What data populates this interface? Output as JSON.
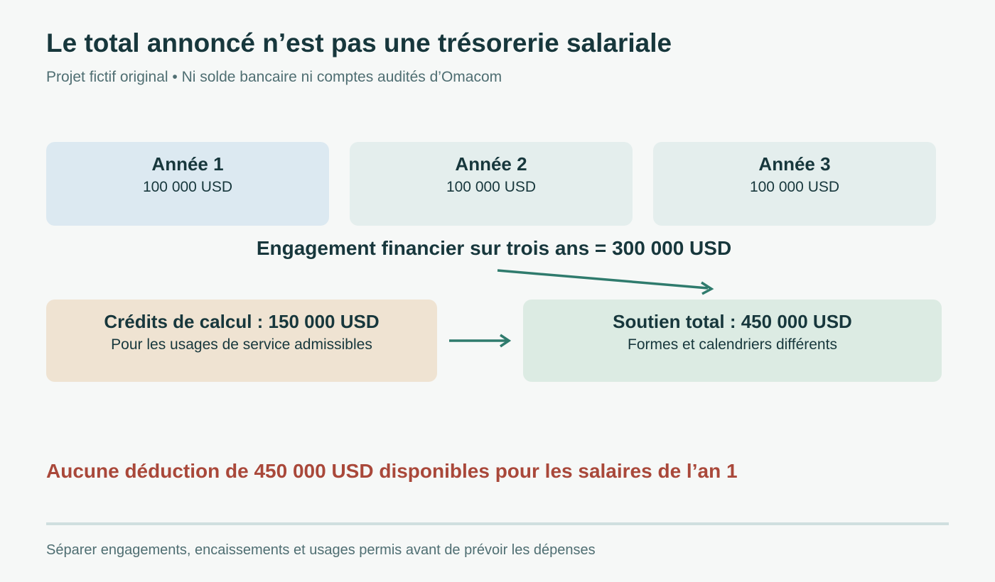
{
  "header": {
    "title": "Le total annoncé n’est pas une trésorerie salariale",
    "subtitle": "Projet fictif original • Ni solde bancaire ni comptes audités d’Omacom"
  },
  "years": [
    {
      "label": "Année 1",
      "amount": "100 000 USD"
    },
    {
      "label": "Année 2",
      "amount": "100 000 USD"
    },
    {
      "label": "Année 3",
      "amount": "100 000 USD"
    }
  ],
  "commitment": {
    "label": "Engagement financier sur trois ans = 300 000 USD"
  },
  "credits": {
    "title": "Crédits de calcul : 150 000 USD",
    "description": "Pour les usages de service admissibles"
  },
  "support": {
    "title": "Soutien total : 450 000 USD",
    "description": "Formes et calendriers différents"
  },
  "warning": {
    "text": "Aucune déduction de 450 000 USD disponibles pour les salaires de l’an 1"
  },
  "footer": {
    "note": "Séparer engagements, encaissements et usages permis avant de prévoir les dépenses"
  },
  "colors": {
    "year_1_fill": "#dce9f1",
    "year_fill": "#e4eeed",
    "credits_fill": "#efe3d2",
    "support_fill": "#dcebe3",
    "arrow": "#2f7b6d",
    "warning_text": "#a9483a",
    "title_text": "#17373c"
  }
}
